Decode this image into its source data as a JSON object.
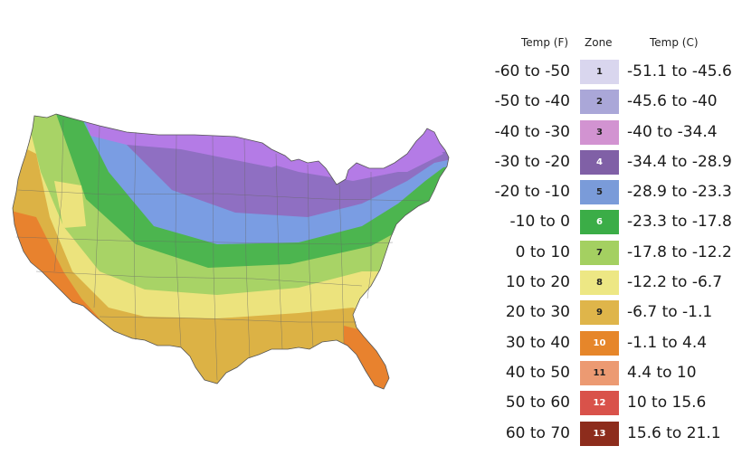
{
  "map": {
    "region": "contiguous-united-states",
    "icon": "usa-hardiness-zone-map",
    "bands": [
      {
        "zone": "10",
        "color": "#e8822e"
      },
      {
        "zone": "9",
        "color": "#dcb245"
      },
      {
        "zone": "8",
        "color": "#ece37d"
      },
      {
        "zone": "7",
        "color": "#a8d366"
      },
      {
        "zone": "6",
        "color": "#4cb54f"
      },
      {
        "zone": "5",
        "color": "#7a9de3"
      },
      {
        "zone": "4",
        "color": "#8f6fc2"
      },
      {
        "zone": "3",
        "color": "#b47be6"
      }
    ]
  },
  "legend": {
    "headers": {
      "temp_f": "Temp (F)",
      "zone": "Zone",
      "temp_c": "Temp (C)"
    },
    "rows": [
      {
        "f": "-60 to -50",
        "zone": "1",
        "c": "-51.1 to -45.6",
        "color": "#d9d6ee",
        "text_color": "#222222"
      },
      {
        "f": "-50 to -40",
        "zone": "2",
        "c": "-45.6 to -40",
        "color": "#aaa7d8",
        "text_color": "#222222"
      },
      {
        "f": "-40 to -30",
        "zone": "3",
        "c": "-40 to -34.4",
        "color": "#d293d1",
        "text_color": "#222222"
      },
      {
        "f": "-30 to -20",
        "zone": "4",
        "c": "-34.4 to -28.9",
        "color": "#8060a6",
        "text_color": "#ffffff"
      },
      {
        "f": "-20 to -10",
        "zone": "5",
        "c": "-28.9 to -23.3",
        "color": "#7a9bd9",
        "text_color": "#222222"
      },
      {
        "f": "-10 to 0",
        "zone": "6",
        "c": "-23.3 to -17.8",
        "color": "#3bad47",
        "text_color": "#ffffff"
      },
      {
        "f": "0 to 10",
        "zone": "7",
        "c": "-17.8 to -12.2",
        "color": "#a4d061",
        "text_color": "#222222"
      },
      {
        "f": "10 to 20",
        "zone": "8",
        "c": "-12.2 to -6.7",
        "color": "#ede784",
        "text_color": "#222222"
      },
      {
        "f": "20 to 30",
        "zone": "9",
        "c": "-6.7 to -1.1",
        "color": "#dfb54a",
        "text_color": "#222222"
      },
      {
        "f": "30 to 40",
        "zone": "10",
        "c": "-1.1 to 4.4",
        "color": "#e6862a",
        "text_color": "#ffffff"
      },
      {
        "f": "40 to 50",
        "zone": "11",
        "c": "4.4 to 10",
        "color": "#ec9a72",
        "text_color": "#222222"
      },
      {
        "f": "50 to 60",
        "zone": "12",
        "c": "10 to 15.6",
        "color": "#d9524a",
        "text_color": "#ffffff"
      },
      {
        "f": "60 to 70",
        "zone": "13",
        "c": "15.6 to 21.1",
        "color": "#8d2c1c",
        "text_color": "#ffffff"
      }
    ]
  }
}
